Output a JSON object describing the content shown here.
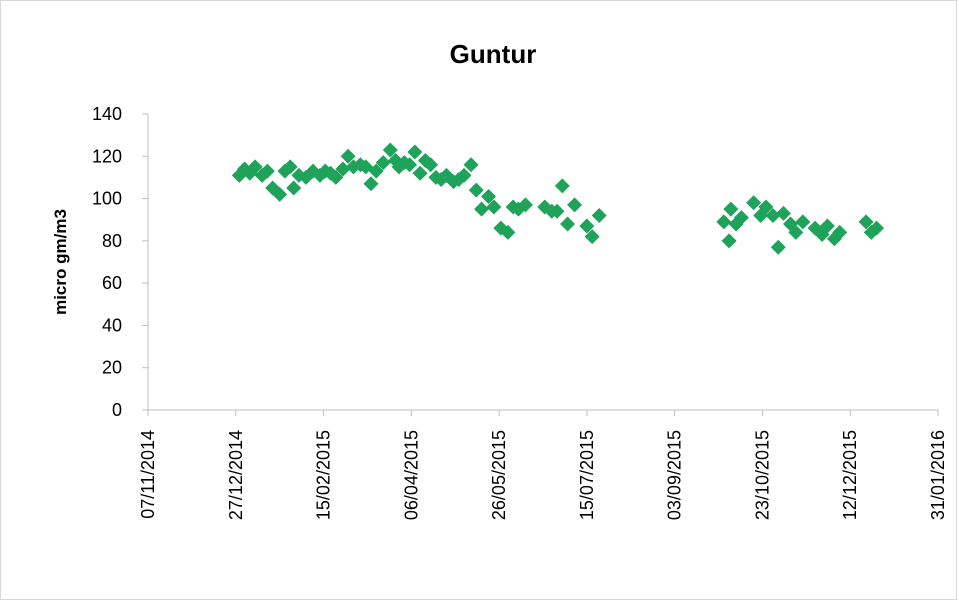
{
  "chart_data": {
    "type": "scatter",
    "title": "Guntur",
    "xlabel": "",
    "ylabel": "micro gm/m3",
    "x_axis": {
      "type": "date",
      "range": [
        "2014-11-07",
        "2016-01-31"
      ],
      "tick_labels": [
        "07/11/2014",
        "27/12/2014",
        "15/02/2015",
        "06/04/2015",
        "26/05/2015",
        "15/07/2015",
        "03/09/2015",
        "23/10/2015",
        "12/12/2015",
        "31/01/2016"
      ]
    },
    "y_axis": {
      "range": [
        0,
        140
      ],
      "tick_labels": [
        "0",
        "20",
        "40",
        "60",
        "80",
        "100",
        "120",
        "140"
      ]
    },
    "grid": false,
    "legend": "none",
    "marker": "diamond",
    "color": "#1fa35a",
    "series": [
      {
        "x": [
          "2014-12-29",
          "2015-01-01",
          "2015-01-04",
          "2015-01-07",
          "2015-01-11",
          "2015-01-14",
          "2015-01-17",
          "2015-01-21",
          "2015-01-24",
          "2015-01-27",
          "2015-01-29",
          "2015-02-01",
          "2015-02-05",
          "2015-02-09",
          "2015-02-13",
          "2015-02-16",
          "2015-02-19",
          "2015-02-22",
          "2015-02-26",
          "2015-03-01",
          "2015-03-04",
          "2015-03-08",
          "2015-03-11",
          "2015-03-14",
          "2015-03-17",
          "2015-03-21",
          "2015-03-25",
          "2015-03-28",
          "2015-03-30",
          "2015-04-02",
          "2015-04-05",
          "2015-04-08",
          "2015-04-11",
          "2015-04-14",
          "2015-04-17",
          "2015-04-20",
          "2015-04-23",
          "2015-04-26",
          "2015-04-30",
          "2015-05-03",
          "2015-05-06",
          "2015-05-10",
          "2015-05-13",
          "2015-05-16",
          "2015-05-20",
          "2015-05-23",
          "2015-05-27",
          "2015-05-31",
          "2015-06-03",
          "2015-06-06",
          "2015-06-10",
          "2015-06-21",
          "2015-06-25",
          "2015-06-28",
          "2015-07-01",
          "2015-07-04",
          "2015-07-08",
          "2015-07-15",
          "2015-07-18",
          "2015-07-22",
          "2015-10-01",
          "2015-10-04",
          "2015-10-05",
          "2015-10-08",
          "2015-10-11",
          "2015-10-18",
          "2015-10-22",
          "2015-10-25",
          "2015-10-29",
          "2015-11-01",
          "2015-11-04",
          "2015-11-08",
          "2015-11-11",
          "2015-11-15",
          "2015-11-22",
          "2015-11-26",
          "2015-11-29",
          "2015-12-03",
          "2015-12-06",
          "2015-12-21",
          "2015-12-24",
          "2015-12-27"
        ],
        "y": [
          111,
          114,
          112,
          115,
          111,
          113,
          105,
          102,
          113,
          115,
          105,
          111,
          110,
          113,
          111,
          113,
          112,
          110,
          114,
          120,
          115,
          116,
          115,
          107,
          113,
          117,
          123,
          118,
          115,
          117,
          116,
          122,
          112,
          118,
          116,
          110,
          109,
          111,
          108,
          109,
          111,
          116,
          104,
          95,
          101,
          96,
          86,
          84,
          96,
          95,
          97,
          96,
          94,
          94,
          106,
          88,
          97,
          87,
          82,
          92,
          89,
          80,
          95,
          88,
          91,
          98,
          92,
          96,
          92,
          77,
          93,
          88,
          84,
          89,
          86,
          83,
          87,
          81,
          84,
          89,
          84,
          86
        ]
      }
    ]
  }
}
